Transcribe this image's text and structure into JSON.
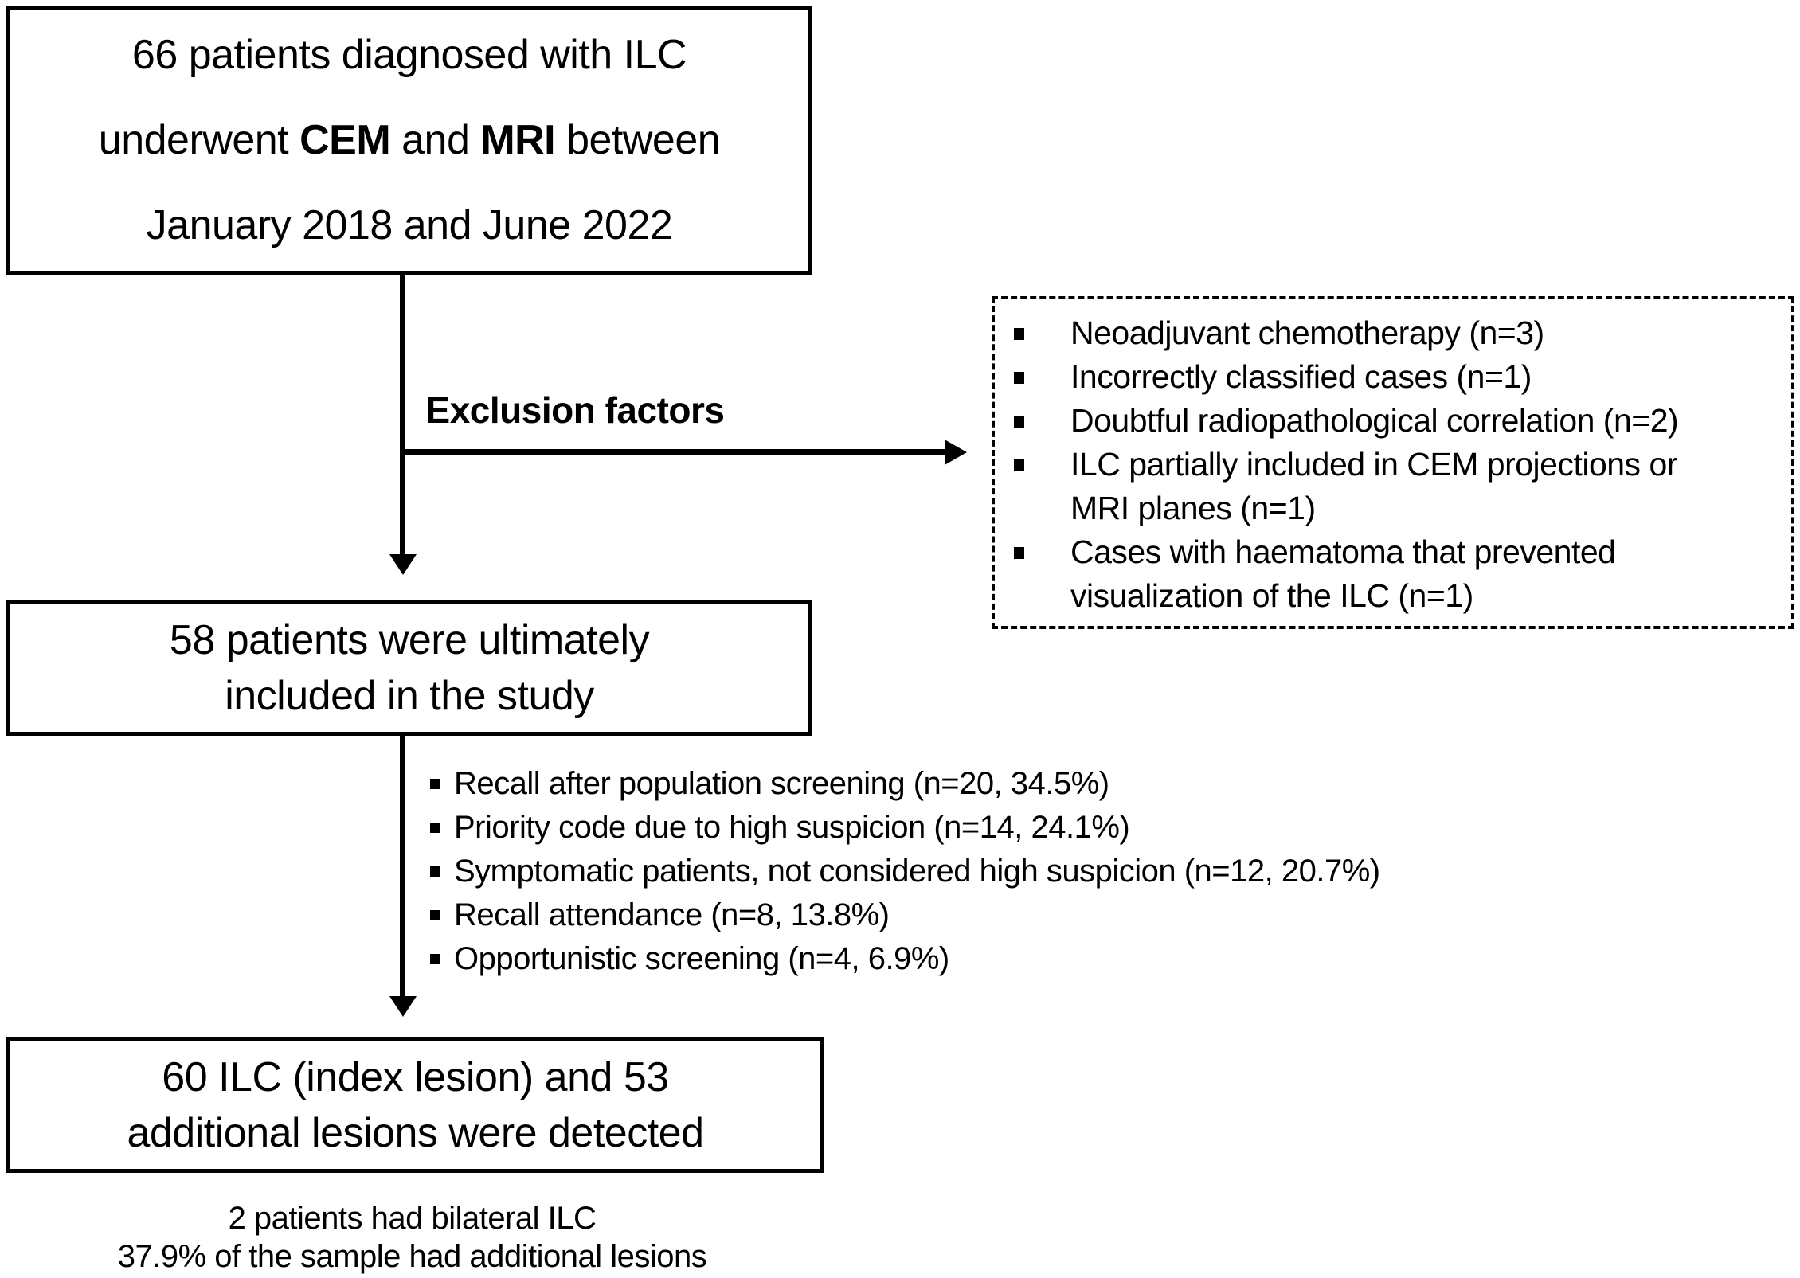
{
  "colors": {
    "ink": "#000000",
    "background": "#ffffff"
  },
  "box1": {
    "line1": "66 patients diagnosed with ILC",
    "line2": {
      "pre": "underwent ",
      "bold1": "CEM",
      "mid": " and ",
      "bold2": "MRI",
      "post": " between"
    },
    "line3": "January 2018 and June 2022"
  },
  "exclusion": {
    "label": "Exclusion factors",
    "items": [
      {
        "lines": [
          "Neoadjuvant chemotherapy (n=3)"
        ]
      },
      {
        "lines": [
          "Incorrectly classified cases (n=1)"
        ]
      },
      {
        "lines": [
          "Doubtful radiopathological correlation (n=2)"
        ]
      },
      {
        "lines": [
          "ILC partially included in CEM projections or",
          "MRI planes (n=1)"
        ]
      },
      {
        "lines": [
          "Cases with haematoma that prevented",
          "visualization of the ILC (n=1)"
        ]
      }
    ]
  },
  "box2": {
    "line1": "58 patients were ultimately",
    "line2": "included in the study"
  },
  "referral_list": {
    "items": [
      {
        "text": "Recall after population screening (n=20, 34.5%)"
      },
      {
        "text": "Priority code due to high suspicion (n=14, 24.1%)"
      },
      {
        "text": "Symptomatic patients, not considered high suspicion (n=12, 20.7%)"
      },
      {
        "text": "Recall attendance (n=8, 13.8%)"
      },
      {
        "text": "Opportunistic screening (n=4, 6.9%)"
      }
    ]
  },
  "box3": {
    "line1": "60 ILC (index lesion) and 53",
    "line2": "additional lesions were detected"
  },
  "footnote": {
    "line1": "2 patients had bilateral ILC",
    "line2": "37.9% of the sample had additional lesions"
  }
}
